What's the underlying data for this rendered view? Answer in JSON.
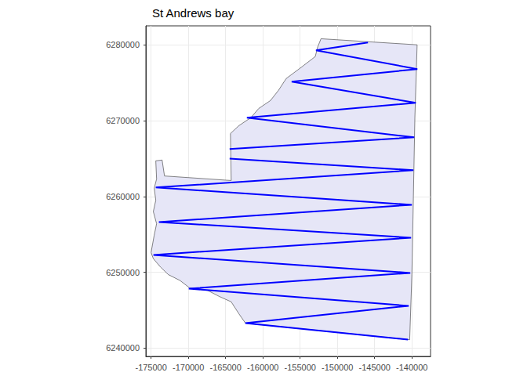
{
  "chart_data": {
    "type": "map",
    "title": "St Andrews bay",
    "xlim": [
      -175700,
      -137500
    ],
    "ylim": [
      6238900,
      6282500
    ],
    "xticks": [
      -175000,
      -170000,
      -165000,
      -160000,
      -155000,
      -150000,
      -145000,
      -140000
    ],
    "yticks": [
      6240000,
      6250000,
      6260000,
      6270000,
      6280000
    ],
    "grid": true,
    "series": [
      {
        "type": "polygon",
        "color": "#e6e6f7",
        "x": [
          -152200,
          -139300,
          -139600,
          -139800,
          -140000,
          -140300,
          -162350,
          -163200,
          -164250,
          -165830,
          -167400,
          -169850,
          -171100,
          -172700,
          -173750,
          -174700,
          -175000,
          -174580,
          -174260,
          -174700,
          -174370,
          -174580,
          -174260,
          -174370,
          -173520,
          -173200,
          -164250,
          -164350,
          -163200,
          -161600,
          -160560,
          -158980,
          -157900,
          -156870,
          -154760,
          -152970,
          -152650
        ],
        "y": [
          6280800,
          6280000,
          6270400,
          6260000,
          6249700,
          6241100,
          6243300,
          6244500,
          6246100,
          6246800,
          6247600,
          6247950,
          6248900,
          6249700,
          6250700,
          6251800,
          6252600,
          6254900,
          6256400,
          6258000,
          6259500,
          6261100,
          6262300,
          6264700,
          6264800,
          6262700,
          6262100,
          6268300,
          6269350,
          6270400,
          6271600,
          6272650,
          6274000,
          6275550,
          6277100,
          6278450,
          6279700
        ]
      },
      {
        "type": "line",
        "color": "#0000ff",
        "x": [
          -145900,
          -152870,
          -139270,
          -156130,
          -139480,
          -162140,
          -139690,
          -164460,
          null,
          -164460,
          -139800,
          -174370,
          -140010,
          -173950,
          -140110,
          -174680,
          -140220,
          -169940,
          -140430,
          -162350,
          -140530
        ],
        "y": [
          6280300,
          6279280,
          6276800,
          6275140,
          6272350,
          6270380,
          6267800,
          6266250,
          null,
          6265000,
          6263460,
          6261180,
          6258900,
          6256630,
          6254560,
          6252290,
          6249910,
          6247840,
          6245570,
          6243300,
          6241120
        ]
      }
    ]
  }
}
